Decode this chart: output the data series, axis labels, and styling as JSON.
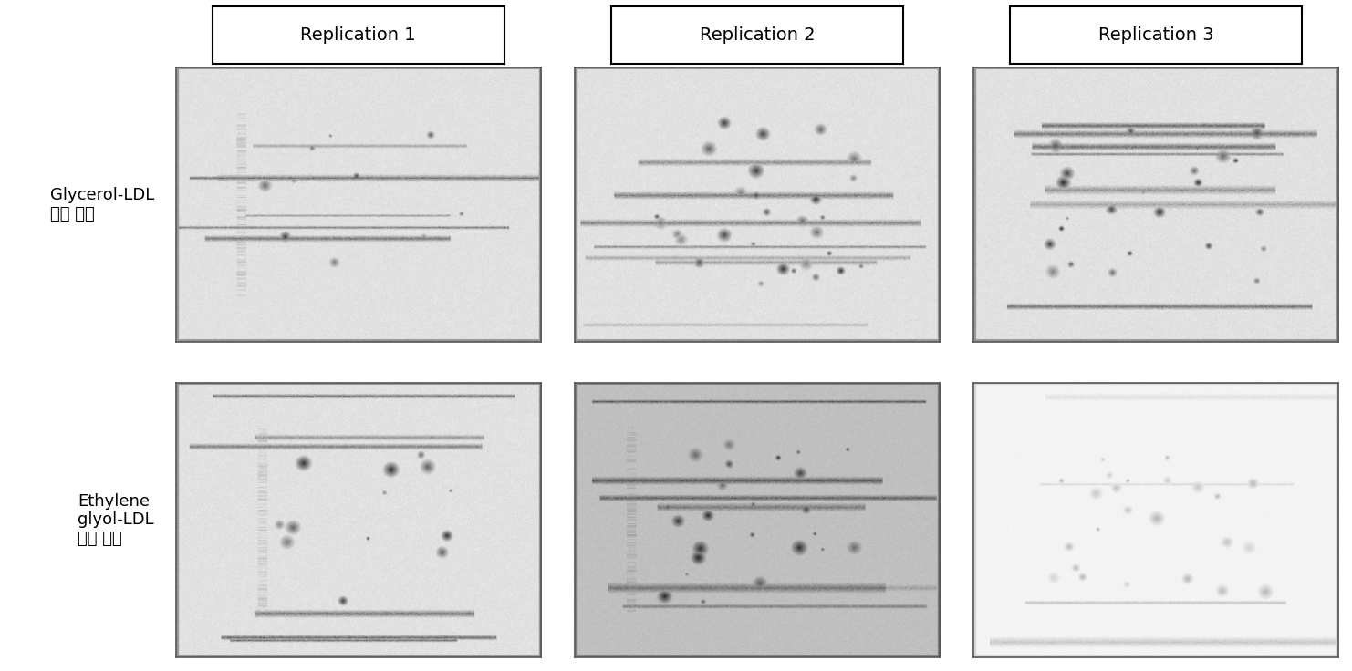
{
  "col_labels": [
    "Replication 1",
    "Replication 2",
    "Replication 3"
  ],
  "row_labels": [
    "Glycerol-LDL\n이용 동결",
    "Ethylene\nglyol-LDL\n이용 동결"
  ],
  "bg_color": "#ffffff",
  "label_fontsize": 13,
  "header_fontsize": 14,
  "fig_width": 14.82,
  "fig_height": 7.36
}
